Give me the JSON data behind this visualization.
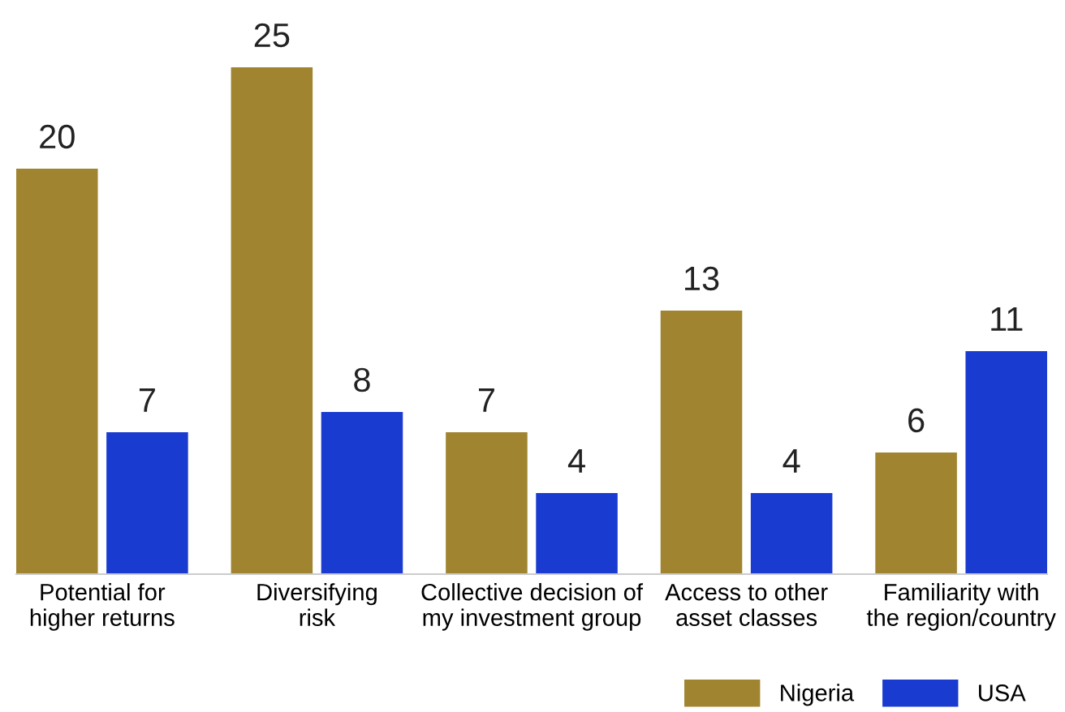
{
  "chart_data": {
    "type": "bar",
    "categories": [
      "Potential for\nhigher returns",
      "Diversifying\nrisk",
      "Collective decision of\nmy investment group",
      "Access to other\nasset classes",
      "Familiarity with\nthe region/country"
    ],
    "series": [
      {
        "name": "Nigeria",
        "color": "#a08430",
        "values": [
          20,
          25,
          7,
          13,
          6
        ]
      },
      {
        "name": "USA",
        "color": "#1a3bd0",
        "values": [
          7,
          8,
          4,
          4,
          11
        ]
      }
    ],
    "data_labels": true,
    "legend": "bottom right",
    "grid": false
  }
}
